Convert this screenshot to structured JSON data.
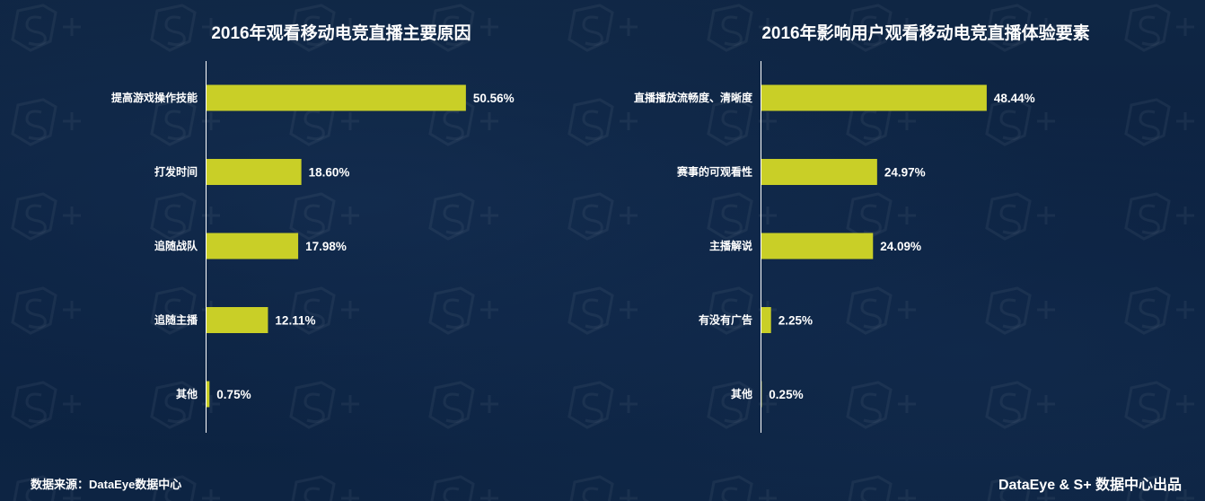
{
  "colors": {
    "background": "#0d2340",
    "bar": "#c9cf27",
    "text": "#ffffff",
    "axis": "#ffffff"
  },
  "chart_data": [
    {
      "type": "bar",
      "orientation": "horizontal",
      "title": "2016年观看移动电竞直播主要原因",
      "categories": [
        "提高游戏操作技能",
        "打发时间",
        "追随战队",
        "追随主播",
        "其他"
      ],
      "values": [
        50.56,
        18.6,
        17.98,
        12.11,
        0.75
      ],
      "value_labels": [
        "50.56%",
        "18.60%",
        "17.98%",
        "12.11%",
        "0.75%"
      ],
      "unit": "%",
      "xlim": [
        0,
        60
      ],
      "grid": false,
      "legend": "none"
    },
    {
      "type": "bar",
      "orientation": "horizontal",
      "title": "2016年影响用户观看移动电竞直播体验要素",
      "categories": [
        "直播播放流畅度、清晰度",
        "赛事的可观看性",
        "主播解说",
        "有没有广告",
        "其他"
      ],
      "values": [
        48.44,
        24.97,
        24.09,
        2.25,
        0.25
      ],
      "value_labels": [
        "48.44%",
        "24.97%",
        "24.09%",
        "2.25%",
        "0.25%"
      ],
      "unit": "%",
      "xlim": [
        0,
        57.5
      ],
      "grid": false,
      "legend": "none"
    }
  ],
  "footer": {
    "source": "数据来源：DataEye数据中心",
    "credit": "DataEye & S+ 数据中心出品"
  }
}
